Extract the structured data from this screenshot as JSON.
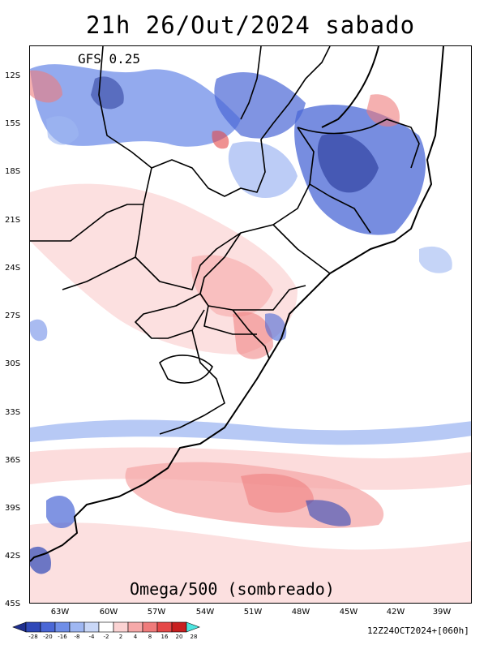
{
  "title": "21h 26/Out/2024 sabado",
  "model": "GFS 0.25",
  "field": "Omega/500 (sombreado)",
  "run": "12Z24OCT2024+[060h]",
  "y_ticks": [
    "12S",
    "15S",
    "18S",
    "21S",
    "24S",
    "27S",
    "30S",
    "33S",
    "36S",
    "39S",
    "42S",
    "45S"
  ],
  "x_ticks": [
    "63W",
    "60W",
    "57W",
    "54W",
    "51W",
    "48W",
    "45W",
    "42W",
    "39W"
  ],
  "colorbar": {
    "labels": [
      "-28",
      "-20",
      "-16",
      "-8",
      "-4",
      "-2",
      "2",
      "4",
      "8",
      "16",
      "20",
      "28"
    ],
    "colors": [
      "#1f2f8f",
      "#2f48b8",
      "#4a67d6",
      "#6f8ee8",
      "#9fb7f2",
      "#c9d7f7",
      "#ffffff",
      "#fbd3d3",
      "#f6a9a9",
      "#ef7b7b",
      "#e54848",
      "#c82020",
      "#4de6e0"
    ]
  }
}
